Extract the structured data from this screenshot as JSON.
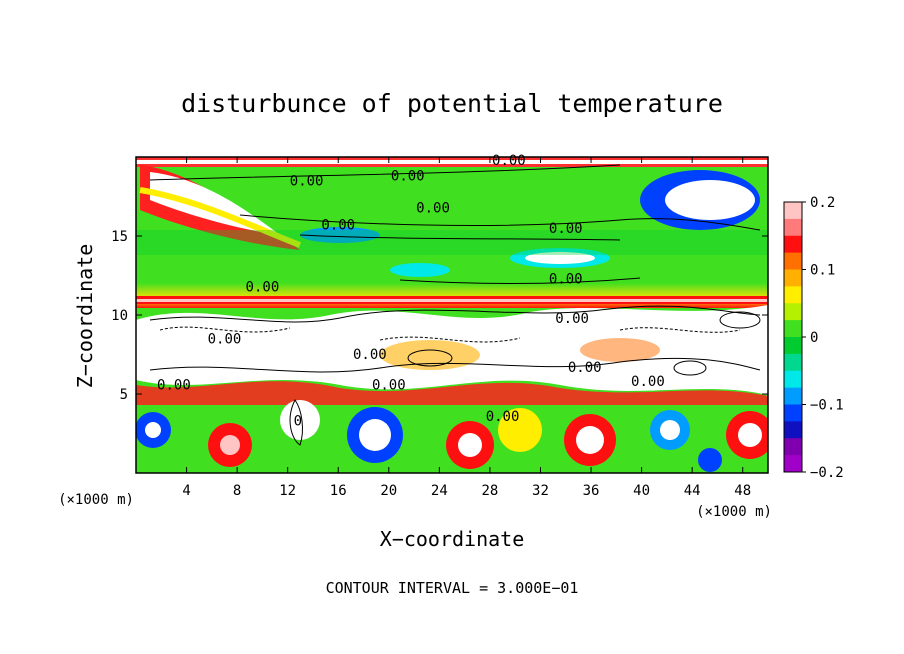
{
  "chart_data": {
    "type": "heatmap",
    "title": "disturbunce of potential temperature",
    "xlabel": "X−coordinate",
    "ylabel": "Z−coordinate",
    "x_unit_label": "(×1000 m)",
    "z_unit_label": "(×1000 m)",
    "footer": "CONTOUR INTERVAL = 3.000E−01",
    "xlim": [
      0,
      50
    ],
    "ylim": [
      0,
      20
    ],
    "x_ticks": [
      "4",
      "8",
      "12",
      "16",
      "20",
      "24",
      "28",
      "32",
      "36",
      "40",
      "44",
      "48"
    ],
    "x_tick_values": [
      4,
      8,
      12,
      16,
      20,
      24,
      28,
      32,
      36,
      40,
      44,
      48
    ],
    "y_ticks": [
      "5",
      "10",
      "15"
    ],
    "y_tick_values": [
      5,
      10,
      15
    ],
    "colorbar": {
      "range": [
        -0.2,
        0.2
      ],
      "ticks": [
        "0.2",
        "0.1",
        "0",
        "−0.1",
        "−0.2"
      ],
      "tick_values": [
        0.2,
        0.1,
        0,
        -0.1,
        -0.2
      ],
      "colors": [
        "#ffc4c4",
        "#ff7a7a",
        "#ff1010",
        "#ff7000",
        "#ffb000",
        "#ffee00",
        "#b4f000",
        "#40e020",
        "#00cc30",
        "#00d890",
        "#00e8e8",
        "#009cff",
        "#0040ff",
        "#1010c0",
        "#8000b0",
        "#a000c8"
      ]
    },
    "contour_interval": 0.3,
    "contour_labels": [
      {
        "text": "0.00",
        "x": 13.5,
        "z": 18.2
      },
      {
        "text": "0.00",
        "x": 21.5,
        "z": 18.5
      },
      {
        "text": "0.00",
        "x": 29.5,
        "z": 19.5
      },
      {
        "text": "0.00",
        "x": 23.5,
        "z": 16.5
      },
      {
        "text": "0.00",
        "x": 16.0,
        "z": 15.4
      },
      {
        "text": "0.00",
        "x": 34.0,
        "z": 15.2
      },
      {
        "text": "0.00",
        "x": 34.0,
        "z": 12.0
      },
      {
        "text": "0.00",
        "x": 10.0,
        "z": 11.5
      },
      {
        "text": "0.00",
        "x": 34.5,
        "z": 9.5
      },
      {
        "text": "0.00",
        "x": 7.0,
        "z": 8.2
      },
      {
        "text": "0.00",
        "x": 18.5,
        "z": 7.2
      },
      {
        "text": "0.00",
        "x": 3.0,
        "z": 5.3
      },
      {
        "text": "0.00",
        "x": 20.0,
        "z": 5.3
      },
      {
        "text": "0.00",
        "x": 35.5,
        "z": 6.4
      },
      {
        "text": "0.00",
        "x": 40.5,
        "z": 5.5
      },
      {
        "text": "0.00",
        "x": 29.0,
        "z": 3.3
      },
      {
        "text": "0",
        "x": 12.8,
        "z": 3.0
      }
    ]
  }
}
